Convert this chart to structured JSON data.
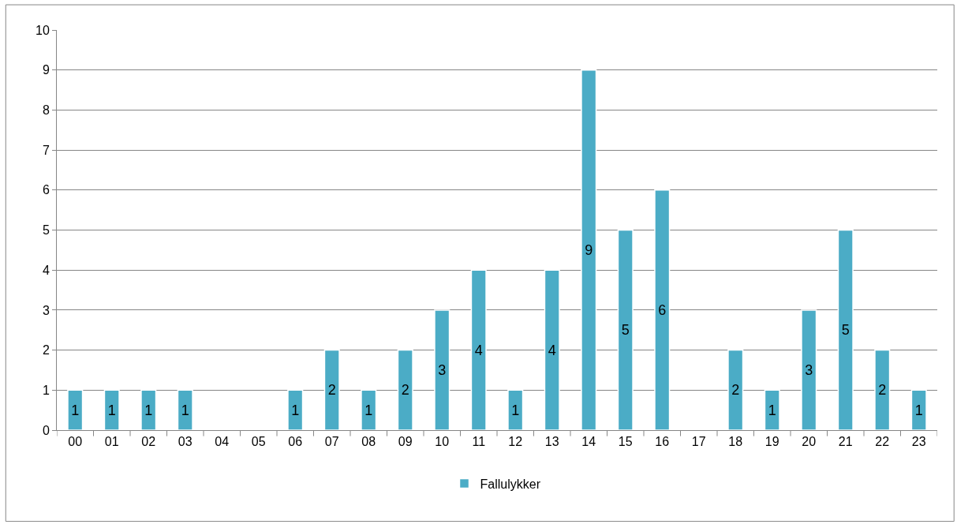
{
  "chart_data": {
    "type": "bar",
    "categories": [
      "00",
      "01",
      "02",
      "03",
      "04",
      "05",
      "06",
      "07",
      "08",
      "09",
      "10",
      "11",
      "12",
      "13",
      "14",
      "15",
      "16",
      "17",
      "18",
      "19",
      "20",
      "21",
      "22",
      "23"
    ],
    "series": [
      {
        "name": "Fallulykker",
        "color": "#4bacc6",
        "values": [
          1,
          1,
          1,
          1,
          null,
          null,
          1,
          2,
          1,
          2,
          3,
          4,
          1,
          4,
          9,
          5,
          6,
          null,
          2,
          1,
          3,
          5,
          2,
          1
        ],
        "value_labels": [
          "1",
          "1",
          "1",
          "1",
          null,
          null,
          "1",
          "2",
          "1",
          "2",
          "3",
          "4",
          "1",
          "4",
          "9",
          "5",
          "6",
          null,
          "2",
          "1",
          "3",
          "5",
          "2",
          "1"
        ]
      }
    ],
    "ylim": [
      0,
      10
    ],
    "yticks": [
      0,
      1,
      2,
      3,
      4,
      5,
      6,
      7,
      8,
      9,
      10
    ],
    "grid": "y",
    "legend": "bottom"
  }
}
